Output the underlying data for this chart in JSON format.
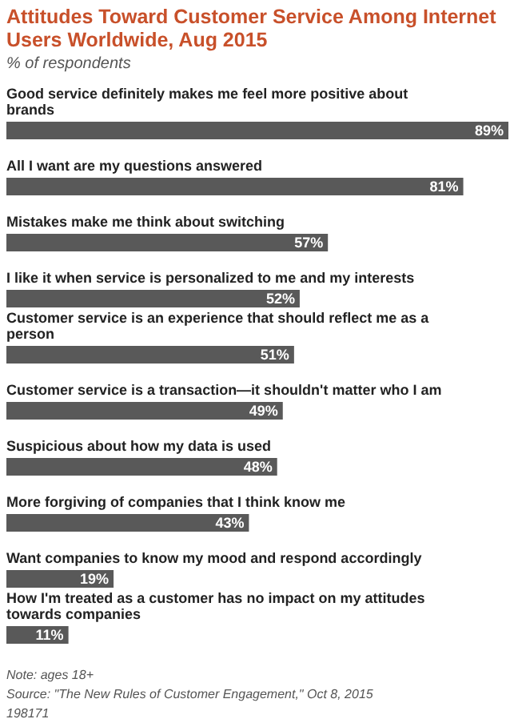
{
  "chart_data": {
    "type": "bar",
    "orientation": "horizontal",
    "title": "Attitudes Toward Customer Service Among Internet Users Worldwide, Aug 2015",
    "subtitle": "% of respondents",
    "categories": [
      "Good service definitely makes me feel more positive about brands",
      "All I want are my questions answered",
      "Mistakes make me think about switching",
      "I like it when service is personalized to me and my interests",
      "Customer service is an experience that should reflect me as a person",
      "Customer service is a transaction—it shouldn't matter who I am",
      "Suspicious about how my data is used",
      "More forgiving of companies that I think know me",
      "Want companies to know my mood and respond accordingly",
      "How I'm treated as a customer has no impact on my attitudes towards companies"
    ],
    "values": [
      89,
      81,
      57,
      52,
      51,
      49,
      48,
      43,
      19,
      11
    ],
    "value_labels": [
      "89%",
      "81%",
      "57%",
      "52%",
      "51%",
      "49%",
      "48%",
      "43%",
      "19%",
      "11%"
    ],
    "color": "#595959",
    "annotations": [
      "Note: ages 18+",
      "Source: \"The New Rules of Customer Engagement,\" Oct 8, 2015",
      "198171"
    ]
  }
}
